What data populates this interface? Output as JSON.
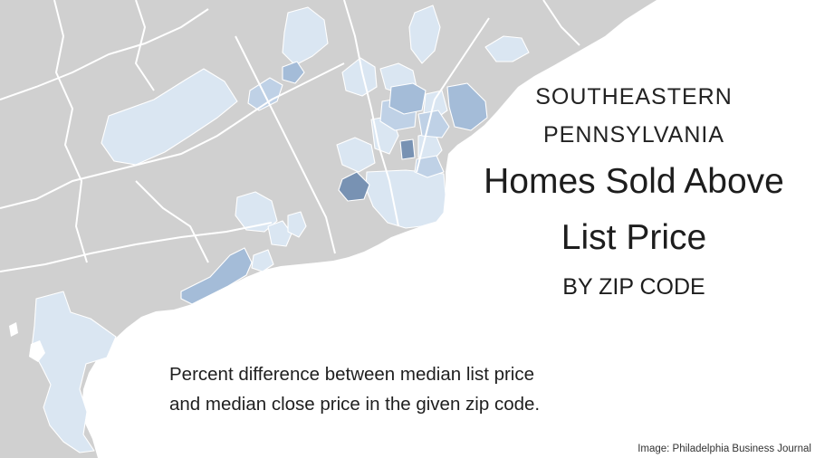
{
  "title": {
    "kicker_line1": "SOUTHEASTERN",
    "kicker_line2": "PENNSYLVANIA",
    "headline_line1": "Homes Sold Above",
    "headline_line2": "List Price",
    "subhead": "BY ZIP CODE"
  },
  "caption": {
    "line1": "Percent difference between median list price",
    "line2": "and median close price in the given zip code."
  },
  "credit": "Image: Philadelphia Business Journal",
  "colors": {
    "no_data": "#d0d0d0",
    "low": "#dae6f2",
    "mid": "#bfd1e6",
    "high": "#a4bcd8",
    "highest": "#7892b3",
    "boundary": "#ffffff",
    "background": "#ffffff"
  }
}
